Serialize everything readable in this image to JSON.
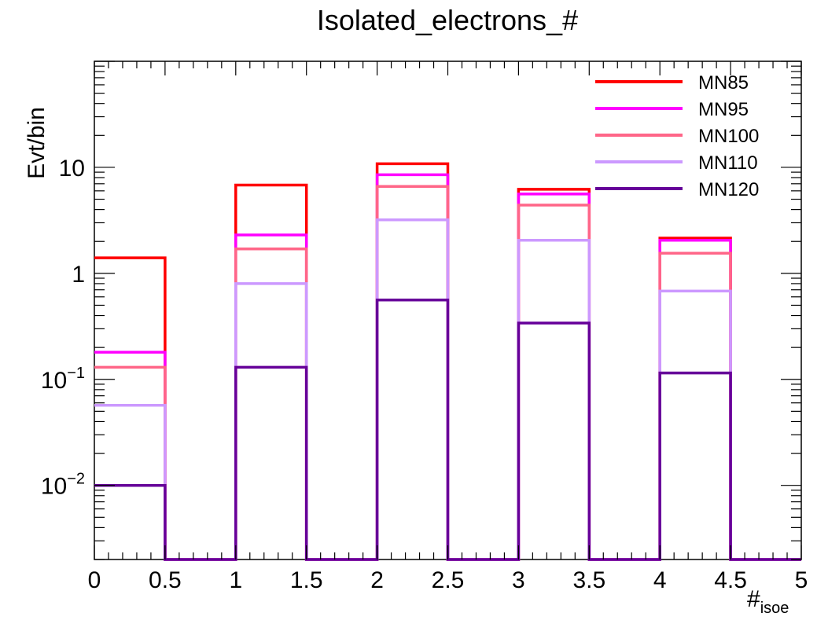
{
  "chart_data": {
    "type": "histogram",
    "title": "Isolated_electrons_#",
    "ylabel": "Evt/bin",
    "xlabel": {
      "main": "#",
      "sub": "isoe"
    },
    "xlim": [
      0,
      5
    ],
    "ylim": [
      0.002,
      100
    ],
    "yscale": "log",
    "grid": false,
    "legend_position": "top-right",
    "bin_edges": [
      0,
      0.5,
      1,
      1.5,
      2,
      2.5,
      3,
      3.5,
      4,
      4.5,
      5
    ],
    "x_ticks": [
      "0",
      "0.5",
      "1",
      "1.5",
      "2",
      "2.5",
      "3",
      "3.5",
      "4",
      "4.5",
      "5"
    ],
    "y_ticks": [
      {
        "value": 0.01,
        "base": "10",
        "exp": "−2"
      },
      {
        "value": 0.1,
        "base": "10",
        "exp": "−1"
      },
      {
        "value": 1,
        "base": "1",
        "exp": ""
      },
      {
        "value": 10,
        "base": "10",
        "exp": ""
      }
    ],
    "series": [
      {
        "name": "MN85",
        "color": "#ff0000",
        "values": [
          1.4,
          0,
          6.8,
          0,
          10.8,
          0,
          6.2,
          0,
          2.15,
          0
        ]
      },
      {
        "name": "MN95",
        "color": "#ff00ff",
        "values": [
          0.18,
          0,
          2.3,
          0,
          8.5,
          0,
          5.6,
          0,
          2.05,
          0
        ]
      },
      {
        "name": "MN100",
        "color": "#ff6688",
        "values": [
          0.13,
          0,
          1.7,
          0,
          6.6,
          0,
          4.4,
          0,
          1.55,
          0
        ]
      },
      {
        "name": "MN110",
        "color": "#cc99ff",
        "values": [
          0.057,
          0,
          0.8,
          0,
          3.2,
          0,
          2.05,
          0,
          0.68,
          0
        ]
      },
      {
        "name": "MN120",
        "color": "#660099",
        "values": [
          0.01,
          0,
          0.13,
          0,
          0.56,
          0,
          0.34,
          0,
          0.115,
          0
        ]
      }
    ]
  }
}
